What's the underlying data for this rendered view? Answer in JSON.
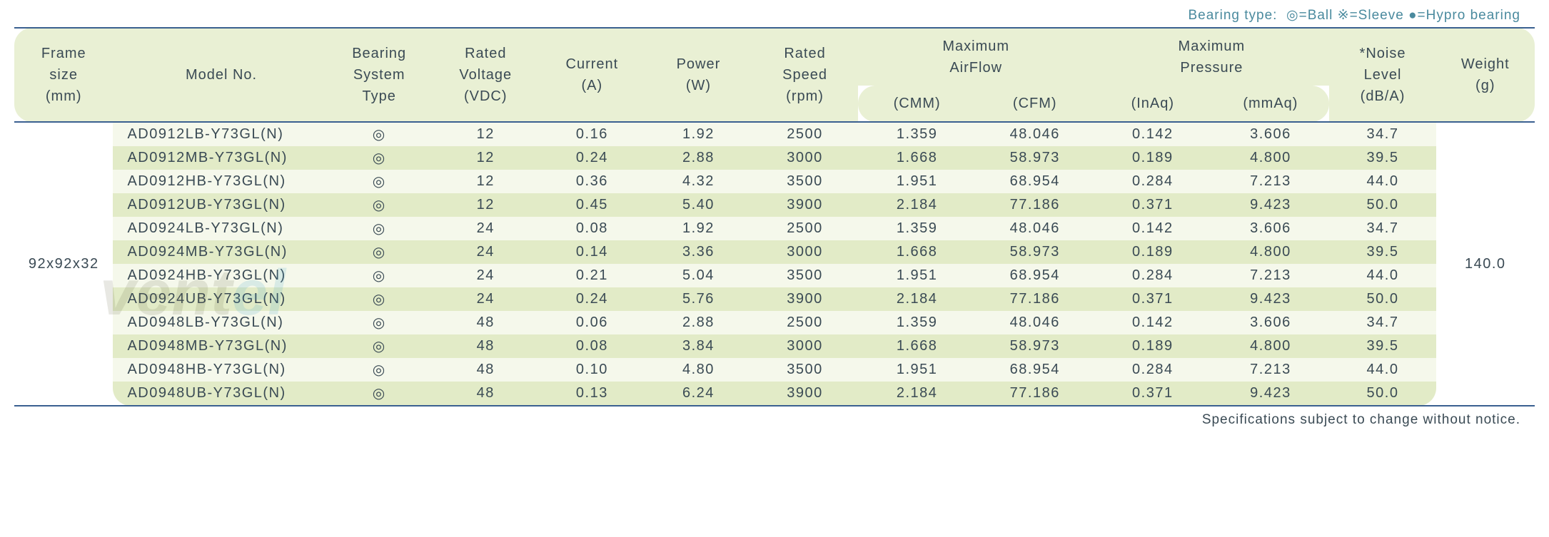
{
  "legend": {
    "prefix": "Bearing type:",
    "ball_symbol": "◎",
    "ball_label": "=Ball",
    "sleeve_symbol": "※",
    "sleeve_label": "=Sleeve",
    "hypro_symbol": "●",
    "hypro_label": "=Hypro bearing"
  },
  "headers": {
    "frame": {
      "l1": "Frame",
      "l2": "size",
      "l3": "(mm)"
    },
    "model": {
      "l1": "",
      "l2": "Model No.",
      "l3": ""
    },
    "bearing": {
      "l1": "Bearing",
      "l2": "System",
      "l3": "Type"
    },
    "voltage": {
      "l1": "Rated",
      "l2": "Voltage",
      "l3": "(VDC)"
    },
    "current": {
      "l1": "",
      "l2": "Current",
      "l3": "(A)"
    },
    "power": {
      "l1": "",
      "l2": "Power",
      "l3": "(W)"
    },
    "speed": {
      "l1": "Rated",
      "l2": "Speed",
      "l3": "(rpm)"
    },
    "airflow": {
      "l1": "Maximum",
      "l2": "AirFlow"
    },
    "cmm": {
      "l3": "(CMM)"
    },
    "cfm": {
      "l3": "(CFM)"
    },
    "pressure": {
      "l1": "Maximum",
      "l2": "Pressure"
    },
    "inaq": {
      "l3": "(InAq)"
    },
    "mmaq": {
      "l3": "(mmAq)"
    },
    "noise": {
      "l1": "*Noise",
      "l2": "Level",
      "l3": "(dB/A)"
    },
    "weight": {
      "l1": "",
      "l2": "Weight",
      "l3": "(g)"
    }
  },
  "frame_size": "92x92x32",
  "weight": "140.0",
  "bearing_symbol": "◎",
  "rows": [
    {
      "model": "AD0912LB-Y73GL(N)",
      "voltage": "12",
      "current": "0.16",
      "power": "1.92",
      "speed": "2500",
      "cmm": "1.359",
      "cfm": "48.046",
      "inaq": "0.142",
      "mmaq": "3.606",
      "noise": "34.7"
    },
    {
      "model": "AD0912MB-Y73GL(N)",
      "voltage": "12",
      "current": "0.24",
      "power": "2.88",
      "speed": "3000",
      "cmm": "1.668",
      "cfm": "58.973",
      "inaq": "0.189",
      "mmaq": "4.800",
      "noise": "39.5"
    },
    {
      "model": "AD0912HB-Y73GL(N)",
      "voltage": "12",
      "current": "0.36",
      "power": "4.32",
      "speed": "3500",
      "cmm": "1.951",
      "cfm": "68.954",
      "inaq": "0.284",
      "mmaq": "7.213",
      "noise": "44.0"
    },
    {
      "model": "AD0912UB-Y73GL(N)",
      "voltage": "12",
      "current": "0.45",
      "power": "5.40",
      "speed": "3900",
      "cmm": "2.184",
      "cfm": "77.186",
      "inaq": "0.371",
      "mmaq": "9.423",
      "noise": "50.0"
    },
    {
      "model": "AD0924LB-Y73GL(N)",
      "voltage": "24",
      "current": "0.08",
      "power": "1.92",
      "speed": "2500",
      "cmm": "1.359",
      "cfm": "48.046",
      "inaq": "0.142",
      "mmaq": "3.606",
      "noise": "34.7"
    },
    {
      "model": "AD0924MB-Y73GL(N)",
      "voltage": "24",
      "current": "0.14",
      "power": "3.36",
      "speed": "3000",
      "cmm": "1.668",
      "cfm": "58.973",
      "inaq": "0.189",
      "mmaq": "4.800",
      "noise": "39.5"
    },
    {
      "model": "AD0924HB-Y73GL(N)",
      "voltage": "24",
      "current": "0.21",
      "power": "5.04",
      "speed": "3500",
      "cmm": "1.951",
      "cfm": "68.954",
      "inaq": "0.284",
      "mmaq": "7.213",
      "noise": "44.0"
    },
    {
      "model": "AD0924UB-Y73GL(N)",
      "voltage": "24",
      "current": "0.24",
      "power": "5.76",
      "speed": "3900",
      "cmm": "2.184",
      "cfm": "77.186",
      "inaq": "0.371",
      "mmaq": "9.423",
      "noise": "50.0"
    },
    {
      "model": "AD0948LB-Y73GL(N)",
      "voltage": "48",
      "current": "0.06",
      "power": "2.88",
      "speed": "2500",
      "cmm": "1.359",
      "cfm": "48.046",
      "inaq": "0.142",
      "mmaq": "3.606",
      "noise": "34.7"
    },
    {
      "model": "AD0948MB-Y73GL(N)",
      "voltage": "48",
      "current": "0.08",
      "power": "3.84",
      "speed": "3000",
      "cmm": "1.668",
      "cfm": "58.973",
      "inaq": "0.189",
      "mmaq": "4.800",
      "noise": "39.5"
    },
    {
      "model": "AD0948HB-Y73GL(N)",
      "voltage": "48",
      "current": "0.10",
      "power": "4.80",
      "speed": "3500",
      "cmm": "1.951",
      "cfm": "68.954",
      "inaq": "0.284",
      "mmaq": "7.213",
      "noise": "44.0"
    },
    {
      "model": "AD0948UB-Y73GL(N)",
      "voltage": "48",
      "current": "0.13",
      "power": "6.24",
      "speed": "3900",
      "cmm": "2.184",
      "cfm": "77.186",
      "inaq": "0.371",
      "mmaq": "9.423",
      "noise": "50.0"
    }
  ],
  "footer_note": "Specifications subject to change without notice.",
  "colors": {
    "header_bg": "#e9f0d4",
    "row_even_bg": "#f5f8eb",
    "row_odd_bg": "#e2ebc7",
    "border": "#3a6090",
    "text": "#3a4a54",
    "legend_text": "#4a8a9e"
  },
  "watermark": "ventel"
}
